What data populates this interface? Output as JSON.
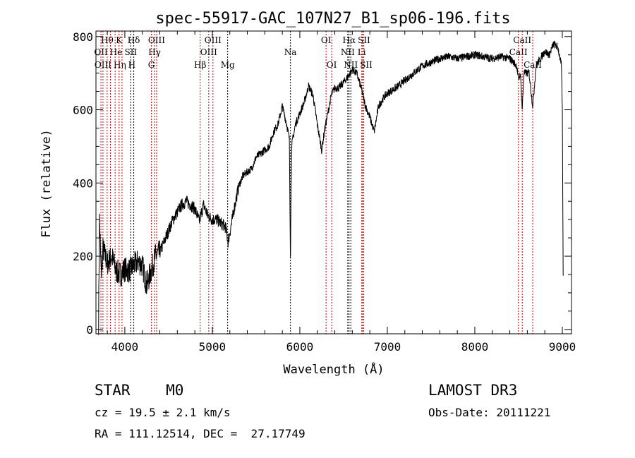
{
  "chart_data": {
    "type": "line",
    "title": "spec-55917-GAC_107N27_B1_sp06-196.fits",
    "xlabel": "Wavelength (Å)",
    "ylabel": "Flux (relative)",
    "xlim": [
      3670,
      9105
    ],
    "ylim": [
      -12,
      815
    ],
    "xticks": [
      4000,
      5000,
      6000,
      7000,
      8000,
      9000
    ],
    "yticks": [
      0,
      200,
      400,
      600,
      800
    ],
    "grid": false,
    "series": [
      {
        "name": "spectrum",
        "color": "#000000",
        "anchors": [
          [
            3700,
            20
          ],
          [
            3710,
            300
          ],
          [
            3730,
            150
          ],
          [
            3750,
            220
          ],
          [
            3800,
            180
          ],
          [
            3850,
            200
          ],
          [
            3900,
            160
          ],
          [
            3950,
            150
          ],
          [
            4000,
            165
          ],
          [
            4050,
            160
          ],
          [
            4100,
            175
          ],
          [
            4150,
            185
          ],
          [
            4200,
            175
          ],
          [
            4250,
            120
          ],
          [
            4300,
            160
          ],
          [
            4350,
            200
          ],
          [
            4400,
            210
          ],
          [
            4450,
            240
          ],
          [
            4500,
            270
          ],
          [
            4550,
            300
          ],
          [
            4600,
            320
          ],
          [
            4650,
            340
          ],
          [
            4700,
            350
          ],
          [
            4750,
            340
          ],
          [
            4800,
            330
          ],
          [
            4850,
            295
          ],
          [
            4900,
            340
          ],
          [
            4950,
            310
          ],
          [
            5000,
            300
          ],
          [
            5050,
            300
          ],
          [
            5100,
            290
          ],
          [
            5150,
            280
          ],
          [
            5180,
            240
          ],
          [
            5220,
            290
          ],
          [
            5250,
            330
          ],
          [
            5300,
            390
          ],
          [
            5350,
            420
          ],
          [
            5400,
            430
          ],
          [
            5450,
            440
          ],
          [
            5500,
            470
          ],
          [
            5550,
            480
          ],
          [
            5600,
            490
          ],
          [
            5650,
            500
          ],
          [
            5700,
            540
          ],
          [
            5750,
            560
          ],
          [
            5800,
            610
          ],
          [
            5850,
            560
          ],
          [
            5880,
            520
          ],
          [
            5893,
            190
          ],
          [
            5905,
            500
          ],
          [
            5950,
            560
          ],
          [
            6000,
            590
          ],
          [
            6050,
            620
          ],
          [
            6100,
            665
          ],
          [
            6150,
            640
          ],
          [
            6200,
            560
          ],
          [
            6250,
            490
          ],
          [
            6280,
            540
          ],
          [
            6320,
            590
          ],
          [
            6360,
            640
          ],
          [
            6400,
            660
          ],
          [
            6450,
            660
          ],
          [
            6500,
            675
          ],
          [
            6550,
            690
          ],
          [
            6600,
            710
          ],
          [
            6650,
            700
          ],
          [
            6700,
            660
          ],
          [
            6750,
            610
          ],
          [
            6800,
            580
          ],
          [
            6850,
            540
          ],
          [
            6900,
            610
          ],
          [
            6950,
            630
          ],
          [
            7000,
            645
          ],
          [
            7100,
            660
          ],
          [
            7200,
            680
          ],
          [
            7300,
            700
          ],
          [
            7400,
            720
          ],
          [
            7500,
            730
          ],
          [
            7600,
            740
          ],
          [
            7700,
            745
          ],
          [
            7800,
            740
          ],
          [
            7900,
            745
          ],
          [
            8000,
            750
          ],
          [
            8100,
            745
          ],
          [
            8200,
            740
          ],
          [
            8300,
            745
          ],
          [
            8400,
            740
          ],
          [
            8480,
            720
          ],
          [
            8500,
            680
          ],
          [
            8520,
            700
          ],
          [
            8542,
            600
          ],
          [
            8560,
            700
          ],
          [
            8620,
            700
          ],
          [
            8662,
            610
          ],
          [
            8700,
            720
          ],
          [
            8750,
            740
          ],
          [
            8800,
            760
          ],
          [
            8850,
            750
          ],
          [
            8900,
            780
          ],
          [
            8950,
            770
          ],
          [
            8990,
            720
          ],
          [
            9000,
            600
          ],
          [
            9010,
            140
          ]
        ]
      }
    ],
    "lines": [
      {
        "label": "OII",
        "wave": 3727,
        "row": 2,
        "color": "#cc0000"
      },
      {
        "label": "Hθ",
        "wave": 3798,
        "row": 1,
        "color": "#cc0000"
      },
      {
        "label": "OIII",
        "wave": 3750,
        "row": 3,
        "color": "#cc0000"
      },
      {
        "label": "Hη",
        "wave": 3835,
        "row": 3,
        "color": "#cc0000"
      },
      {
        "label": "He",
        "wave": 3889,
        "row": 2,
        "color": "#cc0000"
      },
      {
        "label": "K",
        "wave": 3934,
        "row": 1,
        "color": "#cc0000"
      },
      {
        "label": "H",
        "wave": 3968,
        "row": 3,
        "color": "#cc0000"
      },
      {
        "label": "SII",
        "wave": 4068,
        "row": 2,
        "color": "#000000"
      },
      {
        "label": "Hδ",
        "wave": 4102,
        "row": 1,
        "color": "#000000"
      },
      {
        "label": "G",
        "wave": 4304,
        "row": 3,
        "color": "#cc0000"
      },
      {
        "label": "Hγ",
        "wave": 4340,
        "row": 2,
        "color": "#cc0000"
      },
      {
        "label": "OIII",
        "wave": 4363,
        "row": 1,
        "color": "#cc0000"
      },
      {
        "label": "Hβ",
        "wave": 4861,
        "row": 3,
        "color": "#cc0000"
      },
      {
        "label": "OIII",
        "wave": 4959,
        "row": 2,
        "color": "#cc0000"
      },
      {
        "label": "OIII",
        "wave": 5007,
        "row": 1,
        "color": "#cc0000"
      },
      {
        "label": "Mg",
        "wave": 5175,
        "row": 3,
        "color": "#000000"
      },
      {
        "label": "Na",
        "wave": 5893,
        "row": 2,
        "color": "#000000"
      },
      {
        "label": "OI",
        "wave": 6300,
        "row": 1,
        "color": "#cc0000"
      },
      {
        "label": "OI",
        "wave": 6364,
        "row": 3,
        "color": "#cc0000"
      },
      {
        "label": "NII",
        "wave": 6548,
        "row": 2,
        "color": "#000000"
      },
      {
        "label": "Hα",
        "wave": 6563,
        "row": 1,
        "color": "#000000"
      },
      {
        "label": "NII",
        "wave": 6583,
        "row": 3,
        "color": "#000000"
      },
      {
        "label": "Li",
        "wave": 6708,
        "row": 2,
        "color": "#cc0000"
      },
      {
        "label": "SII",
        "wave": 6717,
        "row": 1,
        "color": "#cc0000"
      },
      {
        "label": "SII",
        "wave": 6731,
        "row": 3,
        "color": "#cc0000"
      },
      {
        "label": "CaII",
        "wave": 8498,
        "row": 2,
        "color": "#cc0000"
      },
      {
        "label": "CaII",
        "wave": 8542,
        "row": 1,
        "color": "#cc0000"
      },
      {
        "label": "CaII",
        "wave": 8662,
        "row": 3,
        "color": "#cc0000"
      }
    ]
  },
  "footer": {
    "object_type": "STAR    M0",
    "cz": "cz = 19.5 ± 2.1 km/s",
    "coords": "RA = 111.12514, DEC =  27.17749",
    "survey": "LAMOST DR3",
    "obs_date": "Obs-Date: 20111221"
  }
}
